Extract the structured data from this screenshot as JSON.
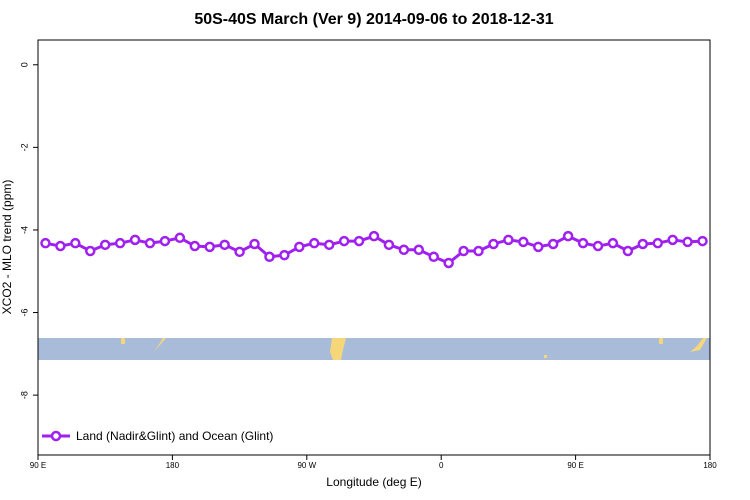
{
  "chart_data": {
    "type": "line",
    "title": "50S-40S March (Ver 9)   2014-09-06 to 2018-12-31",
    "x_label": "Longitude (deg E)",
    "y_label": "XCO2 - MLO trend (ppm)",
    "xlim": [
      90,
      540
    ],
    "ylim": [
      -9.45,
      0.6
    ],
    "xticks": [
      {
        "value": 90,
        "label": "90 E"
      },
      {
        "value": 180,
        "label": "180"
      },
      {
        "value": 270,
        "label": "90 W"
      },
      {
        "value": 360,
        "label": "0"
      },
      {
        "value": 450,
        "label": "90 E"
      },
      {
        "value": 540,
        "label": "180"
      }
    ],
    "yticks": [
      0,
      -2,
      -4,
      -6,
      -8
    ],
    "legend": "bottom-left",
    "x": [
      95,
      105,
      115,
      125,
      135,
      145,
      155,
      165,
      175,
      185,
      195,
      205,
      215,
      225,
      235,
      245,
      255,
      265,
      275,
      285,
      295,
      305,
      315,
      325,
      335,
      345,
      355,
      365,
      375,
      385,
      395,
      405,
      415,
      425,
      435,
      445,
      455,
      465,
      475,
      485,
      495,
      505,
      515,
      525,
      535
    ],
    "series": [
      {
        "name": "Land (Nadir&Glint) and Ocean (Glint)",
        "color": "#a020f0",
        "values": [
          -4.32,
          -4.39,
          -4.32,
          -4.51,
          -4.36,
          -4.32,
          -4.24,
          -4.32,
          -4.27,
          -4.19,
          -4.39,
          -4.41,
          -4.36,
          -4.53,
          -4.34,
          -4.65,
          -4.61,
          -4.41,
          -4.32,
          -4.36,
          -4.27,
          -4.27,
          -4.15,
          -4.36,
          -4.48,
          -4.48,
          -4.65,
          -4.8,
          -4.51,
          -4.51,
          -4.34,
          -4.24,
          -4.29,
          -4.41,
          -4.34,
          -4.15,
          -4.32,
          -4.39,
          -4.32,
          -4.51,
          -4.34,
          -4.32,
          -4.24,
          -4.29,
          -4.27
        ]
      }
    ]
  }
}
